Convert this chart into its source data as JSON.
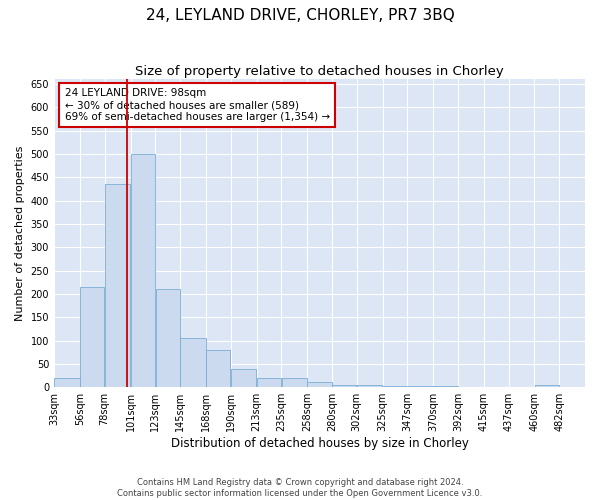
{
  "title": "24, LEYLAND DRIVE, CHORLEY, PR7 3BQ",
  "subtitle": "Size of property relative to detached houses in Chorley",
  "xlabel": "Distribution of detached houses by size in Chorley",
  "ylabel": "Number of detached properties",
  "footer_line1": "Contains HM Land Registry data © Crown copyright and database right 2024.",
  "footer_line2": "Contains public sector information licensed under the Open Government Licence v3.0.",
  "bins": [
    33,
    56,
    78,
    101,
    123,
    145,
    168,
    190,
    213,
    235,
    258,
    280,
    302,
    325,
    347,
    370,
    392,
    415,
    437,
    460,
    482
  ],
  "bar_heights": [
    20,
    215,
    435,
    500,
    210,
    105,
    80,
    40,
    20,
    20,
    12,
    5,
    5,
    2,
    2,
    2,
    0,
    0,
    0,
    5
  ],
  "bar_color": "#ccdaf0",
  "bar_edge_color": "#7aadd4",
  "bg_color": "#dce6f5",
  "grid_color": "#ffffff",
  "property_size": 98,
  "vline_color": "#cc0000",
  "annotation_text": "24 LEYLAND DRIVE: 98sqm\n← 30% of detached houses are smaller (589)\n69% of semi-detached houses are larger (1,354) →",
  "annotation_box_color": "#ffffff",
  "annotation_border_color": "#cc0000",
  "ylim": [
    0,
    660
  ],
  "yticks": [
    0,
    50,
    100,
    150,
    200,
    250,
    300,
    350,
    400,
    450,
    500,
    550,
    600,
    650
  ],
  "title_fontsize": 11,
  "subtitle_fontsize": 9.5,
  "tick_fontsize": 7,
  "ylabel_fontsize": 8,
  "xlabel_fontsize": 8.5,
  "annotation_fontsize": 7.5
}
